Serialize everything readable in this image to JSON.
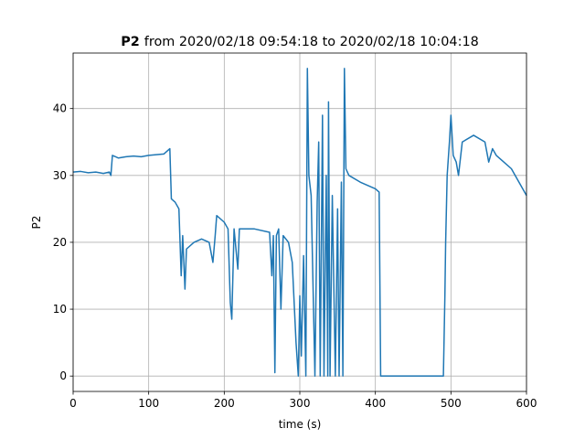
{
  "chart_data": {
    "type": "line",
    "title": [
      "P2",
      "from 2020/02/18 09:54:18 to 2020/02/18 10:04:18"
    ],
    "xlabel": "time (s)",
    "ylabel": "P2",
    "xlim": [
      0,
      600
    ],
    "ylim": [
      -2.3,
      48.3
    ],
    "xticks": [
      0,
      100,
      200,
      300,
      400,
      500,
      600
    ],
    "yticks": [
      0,
      10,
      20,
      30,
      40
    ],
    "grid": true,
    "series": [
      {
        "name": "P2",
        "color": "#1f77b4",
        "x": [
          0,
          10,
          20,
          30,
          40,
          48,
          50,
          52,
          60,
          70,
          80,
          90,
          100,
          110,
          120,
          128,
          130,
          135,
          140,
          143,
          145,
          148,
          150,
          160,
          170,
          180,
          185,
          188,
          190,
          200,
          205,
          208,
          210,
          213,
          218,
          220,
          240,
          260,
          263,
          265,
          267,
          269,
          272,
          275,
          278,
          285,
          290,
          295,
          298,
          300,
          302,
          305,
          308,
          310,
          312,
          315,
          320,
          323,
          325,
          327,
          330,
          332,
          335,
          337,
          338,
          340,
          343,
          347,
          350,
          352,
          355,
          357,
          359,
          361,
          365,
          380,
          400,
          405,
          407,
          490,
          492,
          493,
          495,
          498,
          500,
          503,
          507,
          510,
          515,
          530,
          545,
          550,
          555,
          560,
          570,
          580,
          590,
          600
        ],
        "values": [
          30.5,
          30.6,
          30.4,
          30.5,
          30.3,
          30.5,
          30.0,
          33.0,
          32.6,
          32.8,
          32.9,
          32.8,
          33.0,
          33.1,
          33.2,
          34.0,
          26.5,
          26.0,
          25.0,
          15.0,
          21.0,
          13.0,
          19.0,
          20.0,
          20.5,
          20.0,
          17.0,
          21.0,
          24.0,
          23.0,
          22.0,
          11.0,
          8.5,
          22.0,
          16.0,
          22.0,
          22.0,
          21.5,
          15.0,
          21.0,
          0.5,
          21.0,
          22.0,
          10.0,
          21.0,
          20.0,
          17.0,
          5.0,
          0.0,
          12.0,
          3.0,
          18.0,
          0.0,
          46.0,
          30.0,
          27.0,
          0.0,
          26.0,
          35.0,
          0.0,
          39.0,
          0.0,
          30.0,
          0.0,
          41.0,
          0.0,
          27.0,
          0.0,
          25.0,
          0.0,
          29.0,
          0.0,
          46.0,
          31.0,
          30.0,
          29.0,
          28.0,
          27.5,
          0.0,
          0.0,
          12.0,
          20.0,
          30.0,
          35.0,
          39.0,
          33.0,
          32.0,
          30.0,
          35.0,
          36.0,
          35.0,
          32.0,
          34.0,
          33.0,
          32.0,
          31.0,
          29.0,
          27.0
        ]
      }
    ]
  }
}
